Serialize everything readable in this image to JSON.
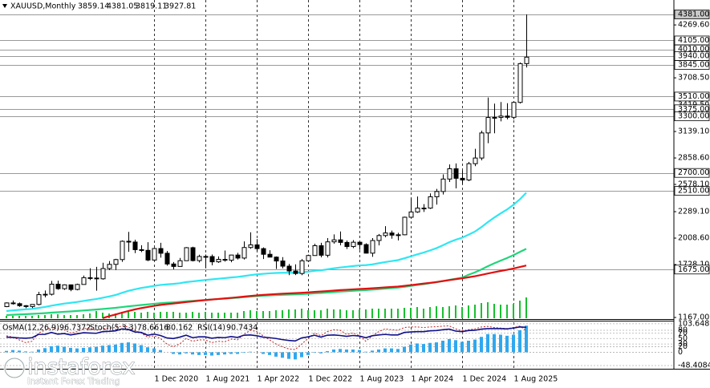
{
  "chart_data": [
    {
      "type": "candlestick",
      "title": "XAUUSD,Monthly",
      "x": [
        "1 Jan 2019",
        "1 Feb 2019",
        "1 Mar 2019",
        "1 Apr 2019",
        "1 May 2019",
        "1 Jun 2019",
        "1 Jul 2019",
        "1 Aug 2019",
        "1 Sep 2019",
        "1 Oct 2019",
        "1 Nov 2019",
        "1 Dec 2019",
        "1 Jan 2020",
        "1 Feb 2020",
        "1 Mar 2020",
        "1 Apr 2020",
        "1 May 2020",
        "1 Jun 2020",
        "1 Jul 2020",
        "1 Aug 2020",
        "1 Sep 2020",
        "1 Oct 2020",
        "1 Nov 2020",
        "1 Dec 2020",
        "1 Jan 2021",
        "1 Feb 2021",
        "1 Mar 2021",
        "1 Apr 2021",
        "1 May 2021",
        "1 Jun 2021",
        "1 Jul 2021",
        "1 Aug 2021",
        "1 Sep 2021",
        "1 Oct 2021",
        "1 Nov 2021",
        "1 Dec 2021",
        "1 Jan 2022",
        "1 Feb 2022",
        "1 Mar 2022",
        "1 Apr 2022",
        "1 May 2022",
        "1 Jun 2022",
        "1 Jul 2022",
        "1 Aug 2022",
        "1 Sep 2022",
        "1 Oct 2022",
        "1 Nov 2022",
        "1 Dec 2022",
        "1 Jan 2023",
        "1 Feb 2023",
        "1 Mar 2023",
        "1 Apr 2023",
        "1 May 2023",
        "1 Jun 2023",
        "1 Jul 2023",
        "1 Aug 2023",
        "1 Sep 2023",
        "1 Oct 2023",
        "1 Nov 2023",
        "1 Dec 2023",
        "1 Jan 2024",
        "1 Feb 2024",
        "1 Mar 2024",
        "1 Apr 2024",
        "1 May 2024",
        "1 Jun 2024",
        "1 Jul 2024",
        "1 Aug 2024",
        "1 Sep 2024",
        "1 Oct 2024",
        "1 Nov 2024",
        "1 Dec 2024",
        "1 Jan 2025",
        "1 Feb 2025",
        "1 Mar 2025",
        "1 Apr 2025",
        "1 May 2025",
        "1 Jun 2025",
        "1 Jul 2025",
        "1 Aug 2025",
        "1 Sep 2025",
        "1 Oct 2025"
      ],
      "open": [
        1282,
        1321,
        1313,
        1292,
        1283,
        1305,
        1409,
        1413,
        1520,
        1472,
        1513,
        1464,
        1517,
        1589,
        1585,
        1577,
        1686,
        1730,
        1781,
        1975,
        1967,
        1886,
        1879,
        1776,
        1898,
        1848,
        1734,
        1708,
        1769,
        1907,
        1770,
        1814,
        1813,
        1757,
        1783,
        1774,
        1829,
        1797,
        1909,
        1937,
        1897,
        1837,
        1807,
        1766,
        1711,
        1660,
        1633,
        1768,
        1824,
        1928,
        1827,
        1969,
        1990,
        1963,
        1919,
        1965,
        1940,
        1849,
        1983,
        2036,
        2063,
        2040,
        2044,
        2230,
        2286,
        2327,
        2327,
        2447,
        2503,
        2635,
        2744,
        2643,
        2625,
        2798,
        2858,
        3124,
        3288,
        3289,
        3303,
        3290,
        3448,
        3859.14
      ],
      "high": [
        1326,
        1347,
        1325,
        1298,
        1306,
        1439,
        1453,
        1555,
        1557,
        1518,
        1516,
        1525,
        1611,
        1689,
        1704,
        1747,
        1765,
        1789,
        1984,
        2075,
        1992,
        1933,
        1965,
        1906,
        1959,
        1872,
        1755,
        1798,
        1913,
        1917,
        1832,
        1834,
        1834,
        1814,
        1877,
        1831,
        1853,
        1974,
        2070,
        1998,
        1910,
        1880,
        1814,
        1807,
        1735,
        1730,
        1787,
        1833,
        1949,
        1959,
        2009,
        2048,
        2079,
        1983,
        1987,
        1949,
        1953,
        2009,
        2052,
        2135,
        2088,
        2065,
        2236,
        2431,
        2450,
        2369,
        2483,
        2531,
        2685,
        2790,
        2801,
        2726,
        2817,
        2956,
        3148,
        3500,
        3435,
        3452,
        3439,
        3453,
        3871,
        4381.05
      ],
      "low": [
        1277,
        1303,
        1280,
        1266,
        1267,
        1296,
        1381,
        1400,
        1460,
        1459,
        1445,
        1455,
        1516,
        1563,
        1451,
        1568,
        1670,
        1670,
        1757,
        1863,
        1849,
        1860,
        1764,
        1776,
        1802,
        1717,
        1677,
        1706,
        1766,
        1761,
        1751,
        1688,
        1721,
        1746,
        1759,
        1753,
        1781,
        1781,
        1895,
        1872,
        1787,
        1805,
        1681,
        1688,
        1615,
        1617,
        1616,
        1765,
        1823,
        1805,
        1804,
        1949,
        1932,
        1893,
        1903,
        1884,
        1846,
        1810,
        1931,
        2017,
        2002,
        1984,
        2039,
        2229,
        2277,
        2286,
        2318,
        2364,
        2471,
        2604,
        2536,
        2583,
        2614,
        2772,
        2833,
        3015,
        3120,
        3247,
        3268,
        3268,
        3436,
        3819.11
      ],
      "close": [
        1321,
        1313,
        1292,
        1283,
        1305,
        1409,
        1413,
        1520,
        1472,
        1513,
        1464,
        1517,
        1589,
        1585,
        1577,
        1686,
        1730,
        1781,
        1975,
        1967,
        1886,
        1879,
        1776,
        1898,
        1848,
        1734,
        1708,
        1769,
        1907,
        1770,
        1814,
        1813,
        1757,
        1783,
        1774,
        1829,
        1797,
        1909,
        1937,
        1897,
        1837,
        1807,
        1766,
        1711,
        1660,
        1633,
        1768,
        1824,
        1928,
        1827,
        1969,
        1990,
        1963,
        1919,
        1965,
        1940,
        1849,
        1983,
        2036,
        2063,
        2040,
        2044,
        2230,
        2286,
        2327,
        2327,
        2447,
        2503,
        2635,
        2744,
        2643,
        2625,
        2798,
        2858,
        3124,
        3288,
        3289,
        3303,
        3290,
        3448,
        3859.14,
        3927.81
      ],
      "overlays": [
        {
          "color": "#2ee6f2",
          "values": [
            1235,
            1242,
            1248,
            1253,
            1258,
            1268,
            1278,
            1292,
            1303,
            1314,
            1322,
            1331,
            1342,
            1353,
            1362,
            1376,
            1390,
            1405,
            1428,
            1449,
            1465,
            1480,
            1490,
            1502,
            1512,
            1518,
            1523,
            1530,
            1542,
            1549,
            1557,
            1565,
            1571,
            1578,
            1584,
            1591,
            1597,
            1606,
            1616,
            1624,
            1630,
            1635,
            1639,
            1641,
            1641,
            1640,
            1645,
            1652,
            1662,
            1667,
            1677,
            1688,
            1697,
            1704,
            1712,
            1719,
            1722,
            1730,
            1742,
            1754,
            1765,
            1775,
            1795,
            1815,
            1836,
            1855,
            1878,
            1902,
            1932,
            1965,
            1991,
            2013,
            2045,
            2078,
            2125,
            2178,
            2226,
            2271,
            2312,
            2362,
            2420,
            2490
          ]
        },
        {
          "color": "#1fd67a",
          "values": [
            1192,
            1196,
            1199,
            1202,
            1205,
            1209,
            1213,
            1218,
            1222,
            1227,
            1231,
            1236,
            1241,
            1246,
            1251,
            1257,
            1263,
            1269,
            1277,
            1285,
            1292,
            1299,
            1305,
            1312,
            1318,
            1323,
            1327,
            1332,
            1338,
            1343,
            1348,
            1353,
            1358,
            1362,
            1367,
            1372,
            1376,
            1382,
            1388,
            1393,
            1397,
            1401,
            1404,
            1407,
            1409,
            1411,
            1414,
            1418,
            1423,
            1426,
            1431,
            1436,
            1441,
            1445,
            1450,
            1454,
            1457,
            1462,
            1467,
            1473,
            1478,
            1483,
            1492,
            1501,
            1511,
            1520,
            1530,
            1541,
            1553,
            1566,
            1578,
            1589,
            1620,
            1645,
            1676,
            1710,
            1741,
            1770,
            1797,
            1828,
            1862,
            1895
          ]
        },
        {
          "color": "#e01010",
          "values": [
            null,
            null,
            null,
            null,
            null,
            null,
            null,
            null,
            null,
            null,
            null,
            null,
            null,
            null,
            null,
            1160,
            1180,
            1198,
            1218,
            1236,
            1252,
            1266,
            1278,
            1290,
            1300,
            1308,
            1315,
            1322,
            1330,
            1337,
            1344,
            1351,
            1357,
            1363,
            1369,
            1375,
            1381,
            1388,
            1395,
            1401,
            1406,
            1411,
            1415,
            1419,
            1422,
            1425,
            1429,
            1433,
            1438,
            1442,
            1447,
            1452,
            1457,
            1461,
            1465,
            1469,
            1472,
            1476,
            1481,
            1486,
            1490,
            1495,
            1502,
            1510,
            1518,
            1526,
            1534,
            1543,
            1553,
            1563,
            1573,
            1582,
            1593,
            1604,
            1618,
            1633,
            1647,
            1660,
            1672,
            1686,
            1702,
            1718
          ]
        }
      ],
      "volume": {
        "color": "#18c030",
        "values": [
          3,
          3,
          3,
          3,
          3,
          4,
          4,
          5,
          5,
          4,
          4,
          4,
          5,
          6,
          9,
          7,
          6,
          6,
          8,
          10,
          8,
          7,
          8,
          7,
          8,
          8,
          8,
          7,
          7,
          8,
          7,
          8,
          7,
          7,
          7,
          7,
          7,
          9,
          10,
          9,
          9,
          9,
          10,
          10,
          11,
          11,
          12,
          10,
          10,
          10,
          12,
          11,
          11,
          10,
          10,
          11,
          11,
          12,
          12,
          12,
          12,
          12,
          13,
          13,
          14,
          12,
          14,
          15,
          14,
          15,
          16,
          14,
          16,
          17,
          19,
          20,
          18,
          17,
          17,
          18,
          22,
          26
        ]
      },
      "ylim": [
        1150,
        4534
      ],
      "yticks": [
        {
          "value": 4269.6,
          "label": "4269.60"
        },
        {
          "value": 3708.5,
          "label": "3708.50"
        },
        {
          "value": 3419.5,
          "label": "3419.50"
        },
        {
          "value": 3139.1,
          "label": "3139.10"
        },
        {
          "value": 2858.6,
          "label": "2858.60"
        },
        {
          "value": 2578.1,
          "label": "2578.10"
        },
        {
          "value": 2289.1,
          "label": "2289.10"
        },
        {
          "value": 2008.6,
          "label": "2008.60"
        },
        {
          "value": 1728.1,
          "label": "1728.10"
        },
        {
          "value": 1167,
          "label": "1167.00"
        }
      ],
      "levels": [
        {
          "value": 4381,
          "label": "4381.00"
        },
        {
          "value": 4105,
          "label": "4105.00"
        },
        {
          "value": 4010,
          "label": "4010.00"
        },
        {
          "value": 3940,
          "label": "3940.00"
        },
        {
          "value": 3845,
          "label": "3845.00"
        },
        {
          "value": 3510,
          "label": "3510.00"
        },
        {
          "value": 3375,
          "label": "3375.00"
        },
        {
          "value": 3300,
          "label": "3300.00"
        },
        {
          "value": 2700,
          "label": "2700.00"
        },
        {
          "value": 2510,
          "label": "2510.00"
        },
        {
          "value": 1675,
          "label": "1675.00"
        }
      ],
      "xticks": [
        "1 Dec 2020",
        "1 Aug 2021",
        "1 Apr 2022",
        "1 Dec 2022",
        "1 Aug 2023",
        "1 Apr 2024",
        "1 Dec 2024",
        "1 Aug 2025"
      ]
    },
    {
      "type": "oscillator",
      "ylim": [
        -60,
        112
      ],
      "yticks": [
        103.6489,
        80,
        70,
        50,
        30,
        20,
        0,
        -48.4084
      ],
      "series": [
        {
          "name": "OsMA(12,26,9)",
          "style": "histogram",
          "color": "#2ea8f0",
          "values": [
            5,
            8,
            6,
            3,
            2,
            10,
            15,
            22,
            24,
            20,
            16,
            14,
            16,
            18,
            20,
            24,
            26,
            28,
            34,
            36,
            32,
            26,
            18,
            14,
            8,
            0,
            -6,
            -8,
            -4,
            -8,
            -10,
            -10,
            -12,
            -10,
            -8,
            -6,
            -6,
            -2,
            2,
            0,
            -6,
            -10,
            -16,
            -20,
            -24,
            -26,
            -18,
            -10,
            -2,
            -4,
            4,
            10,
            12,
            10,
            10,
            8,
            2,
            6,
            10,
            14,
            14,
            12,
            20,
            28,
            32,
            30,
            34,
            36,
            42,
            48,
            44,
            38,
            42,
            46,
            56,
            66,
            66,
            64,
            60,
            64,
            80,
            96.7372
          ]
        },
        {
          "name": "Stoch(5,3,3)",
          "style": "dotted",
          "color": "#c02020",
          "signal": 80.162,
          "values": [
            60,
            55,
            45,
            35,
            40,
            70,
            80,
            90,
            85,
            82,
            70,
            75,
            85,
            88,
            80,
            85,
            88,
            90,
            95,
            92,
            80,
            70,
            55,
            60,
            50,
            30,
            20,
            30,
            50,
            40,
            45,
            45,
            35,
            40,
            38,
            48,
            45,
            65,
            80,
            75,
            60,
            45,
            30,
            20,
            12,
            10,
            30,
            50,
            70,
            60,
            75,
            82,
            80,
            65,
            70,
            60,
            40,
            60,
            75,
            85,
            82,
            80,
            90,
            92,
            92,
            90,
            92,
            93,
            95,
            96,
            85,
            78,
            82,
            85,
            92,
            94,
            90,
            88,
            86,
            90,
            95,
            78.6616
          ]
        },
        {
          "name": "RSI(14)",
          "style": "line",
          "color": "#10108a",
          "values": [
            55,
            54,
            52,
            51,
            53,
            65,
            65,
            72,
            66,
            68,
            63,
            67,
            71,
            70,
            69,
            75,
            76,
            78,
            85,
            83,
            74,
            72,
            62,
            66,
            61,
            52,
            50,
            55,
            62,
            53,
            56,
            56,
            51,
            54,
            53,
            57,
            54,
            62,
            63,
            60,
            55,
            53,
            50,
            46,
            43,
            41,
            52,
            56,
            62,
            55,
            62,
            63,
            61,
            58,
            61,
            59,
            53,
            60,
            63,
            65,
            63,
            63,
            72,
            74,
            75,
            75,
            78,
            79,
            82,
            84,
            77,
            75,
            79,
            80,
            84,
            86,
            86,
            86,
            85,
            88,
            92,
            90.7434
          ]
        }
      ]
    }
  ],
  "watermark": {
    "brand": "instaforex",
    "tagline": "Instant Forex Trading"
  }
}
